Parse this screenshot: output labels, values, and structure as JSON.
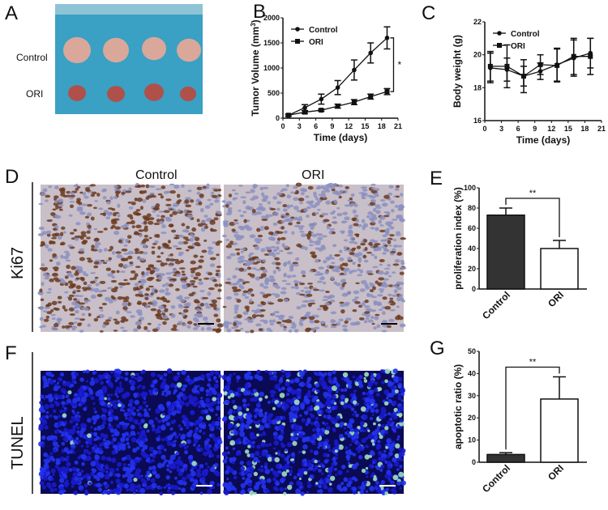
{
  "panels": {
    "A": {
      "letter": "A",
      "row_labels": [
        "Control",
        "ORI"
      ]
    },
    "D": {
      "letter": "D",
      "col_labels": [
        "Control",
        "ORI"
      ],
      "row_label": "Ki67"
    },
    "F": {
      "letter": "F",
      "row_label": "TUNEL"
    }
  },
  "colors": {
    "control_bar": "#333333",
    "ori_bar": "#ffffff",
    "line": "#111111",
    "tunel_bg": "#1a1acc",
    "ihc_bg": "#c9bfc8"
  },
  "chart_data": [
    {
      "id": "B",
      "letter": "B",
      "type": "line",
      "xlabel": "Time (days)",
      "ylabel": "Tumor Volume (mm",
      "ylabel_sup": "3",
      "ylabel_end": ")",
      "xlim": [
        0,
        21
      ],
      "ylim": [
        0,
        2000
      ],
      "xticks": [
        0,
        3,
        6,
        9,
        12,
        15,
        18,
        21
      ],
      "yticks": [
        0,
        500,
        1000,
        1500,
        2000
      ],
      "legend": "top-left",
      "annotation": "*",
      "x": [
        1,
        4,
        7,
        10,
        13,
        16,
        19
      ],
      "series": [
        {
          "name": "Control",
          "marker": "circle",
          "values": [
            60,
            210,
            380,
            610,
            960,
            1300,
            1600
          ],
          "errors": [
            20,
            60,
            100,
            140,
            200,
            200,
            220
          ]
        },
        {
          "name": "ORI",
          "marker": "square",
          "values": [
            60,
            120,
            160,
            240,
            320,
            430,
            530
          ],
          "errors": [
            20,
            30,
            20,
            40,
            50,
            50,
            60
          ]
        }
      ]
    },
    {
      "id": "C",
      "letter": "C",
      "type": "line",
      "xlabel": "Time (days)",
      "ylabel": "Body weight (g)",
      "xlim": [
        0,
        21
      ],
      "ylim": [
        16,
        22
      ],
      "xticks": [
        0,
        3,
        6,
        9,
        12,
        15,
        18,
        21
      ],
      "yticks": [
        16,
        18,
        20,
        22
      ],
      "legend": "top-left",
      "x": [
        1,
        4,
        7,
        10,
        13,
        16,
        19
      ],
      "series": [
        {
          "name": "Control",
          "marker": "circle",
          "values": [
            19.2,
            19.1,
            18.7,
            19.0,
            19.4,
            19.8,
            20.1
          ],
          "errors": [
            0.9,
            0.7,
            0.6,
            0.5,
            1.0,
            1.1,
            0.9
          ]
        },
        {
          "name": "ORI",
          "marker": "square",
          "values": [
            19.3,
            19.3,
            18.7,
            19.4,
            19.35,
            19.9,
            19.9
          ],
          "errors": [
            0.9,
            1.3,
            1.0,
            0.6,
            1.0,
            1.1,
            1.1
          ]
        }
      ]
    },
    {
      "id": "E",
      "letter": "E",
      "type": "bar",
      "ylabel": "proliferation index (%)",
      "ylim": [
        0,
        100
      ],
      "yticks": [
        0,
        20,
        40,
        60,
        80,
        100
      ],
      "categories": [
        "Control",
        "ORI"
      ],
      "values": [
        73,
        40
      ],
      "errors": [
        7,
        8
      ],
      "annotation": "**"
    },
    {
      "id": "G",
      "letter": "G",
      "type": "bar",
      "ylabel": "apoptotic ratio (%)",
      "ylim": [
        0,
        50
      ],
      "yticks": [
        0,
        10,
        20,
        30,
        40,
        50
      ],
      "categories": [
        "Control",
        "ORI"
      ],
      "values": [
        3.5,
        28.5
      ],
      "errors": [
        0.8,
        10
      ],
      "annotation": "**"
    }
  ]
}
